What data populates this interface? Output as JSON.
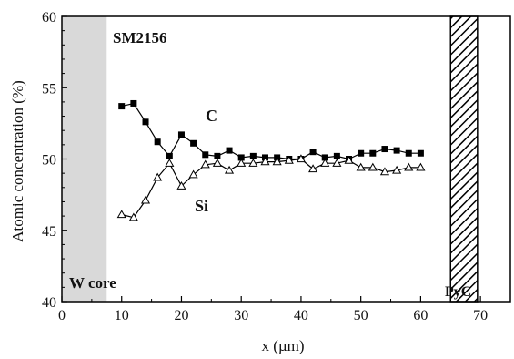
{
  "chart_data": {
    "type": "line",
    "xlabel": "x (µm)",
    "ylabel": "Atomic concentration (%)",
    "xlim": [
      0,
      75
    ],
    "ylim": [
      40,
      60
    ],
    "xticks": [
      0,
      10,
      20,
      30,
      40,
      50,
      60,
      70
    ],
    "yticks": [
      40,
      45,
      50,
      55,
      60
    ],
    "grid": false,
    "series": [
      {
        "name": "C",
        "marker": "filled-square",
        "color": "#000000",
        "x": [
          10,
          12,
          14,
          16,
          18,
          20,
          22,
          24,
          26,
          28,
          30,
          32,
          34,
          36,
          38,
          40,
          42,
          44,
          46,
          48,
          50,
          52,
          54,
          56,
          58,
          60
        ],
        "values": [
          53.7,
          53.9,
          52.6,
          51.2,
          50.2,
          51.7,
          51.1,
          50.3,
          50.2,
          50.6,
          50.1,
          50.2,
          50.1,
          50.1,
          50.0,
          50.0,
          50.5,
          50.1,
          50.2,
          50.0,
          50.4,
          50.4,
          50.7,
          50.6,
          50.4,
          50.4
        ]
      },
      {
        "name": "Si",
        "marker": "open-triangle",
        "color": "#000000",
        "x": [
          10,
          12,
          14,
          16,
          18,
          20,
          22,
          24,
          26,
          28,
          30,
          32,
          34,
          36,
          38,
          40,
          42,
          44,
          46,
          48,
          50,
          52,
          54,
          56,
          58,
          60
        ],
        "values": [
          46.1,
          45.9,
          47.1,
          48.7,
          49.7,
          48.1,
          48.9,
          49.6,
          49.7,
          49.2,
          49.7,
          49.7,
          49.8,
          49.8,
          49.9,
          50.0,
          49.3,
          49.7,
          49.7,
          49.9,
          49.4,
          49.4,
          49.1,
          49.2,
          49.4,
          49.4
        ]
      }
    ],
    "regions": [
      {
        "label": "W core",
        "x_start": 0,
        "x_end": 7.5,
        "fill": "#d9d9d9",
        "pattern": "solid"
      },
      {
        "label": "PyC",
        "x_start": 65,
        "x_end": 69.5,
        "fill": "#ffffff",
        "pattern": "hatch"
      }
    ],
    "annotations": [
      {
        "text": "SM2156"
      },
      {
        "text": "C"
      },
      {
        "text": "Si"
      }
    ]
  }
}
